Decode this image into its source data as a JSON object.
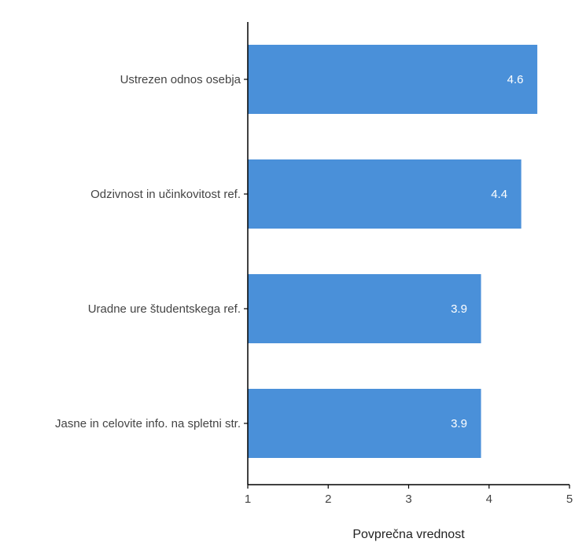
{
  "chart_data": {
    "type": "bar",
    "orientation": "horizontal",
    "categories": [
      "Ustrezen odnos osebja",
      "Odzivnost in učinkovitost ref.",
      "Uradne ure študentskega ref.",
      "Jasne in celovite info. na spletni str."
    ],
    "values": [
      4.6,
      4.4,
      3.9,
      3.9
    ],
    "value_labels": [
      "4.6",
      "4.4",
      "3.9",
      "3.9"
    ],
    "xlabel": "Povprečna vrednost",
    "ylabel": "",
    "xlim": [
      1,
      5
    ],
    "xticks": [
      1,
      2,
      3,
      4,
      5
    ],
    "xtick_labels": [
      "1",
      "2",
      "3",
      "4",
      "5"
    ],
    "grid": false,
    "bar_color": "#4a90d9"
  }
}
